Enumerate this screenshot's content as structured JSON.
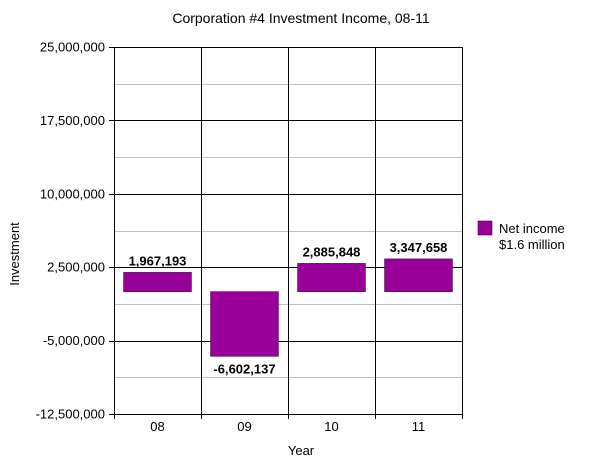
{
  "chart_data": {
    "type": "bar",
    "title": "Corporation #4 Investment Income, 08-11",
    "xlabel": "Year",
    "ylabel": "Investment",
    "categories": [
      "08",
      "09",
      "10",
      "11"
    ],
    "series": [
      {
        "name": "Net income",
        "values": [
          1967193,
          -6602137,
          2885848,
          3347658
        ],
        "data_labels": [
          "1,967,193",
          "-6,602,137",
          "2,885,848",
          "3,347,658"
        ],
        "color": "#990099"
      }
    ],
    "ylim": [
      -12500000,
      25000000
    ],
    "baseline": 0,
    "yticks": [
      {
        "value": 25000000,
        "label": "25,000,000"
      },
      {
        "value": 17500000,
        "label": "17,500,000"
      },
      {
        "value": 10000000,
        "label": "10,000,000"
      },
      {
        "value": 2500000,
        "label": "2,500,000"
      },
      {
        "value": -5000000,
        "label": "-5,000,000"
      },
      {
        "value": -12500000,
        "label": "-12,500,000"
      }
    ],
    "minor_gridlines": [
      21250000,
      13750000,
      6250000,
      -1250000,
      -8750000
    ],
    "grid": true,
    "legend": {
      "position": "right",
      "entries": [
        {
          "label": "Net income",
          "sublabel": "$1.6 million",
          "color": "#990099"
        }
      ]
    }
  }
}
